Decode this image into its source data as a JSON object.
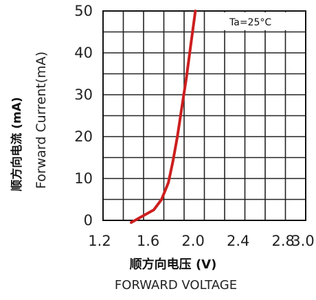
{
  "chart_data": {
    "type": "line",
    "title": "",
    "xlabel_cn": "顺方向电压 (V)",
    "xlabel": "FORWARD VOLTAGE",
    "ylabel_cn": "顺方向电流 (mA)",
    "ylabel": "Forward Current(mA)",
    "annotation": "Ta=25°C",
    "xlim": [
      1.2,
      3.0
    ],
    "ylim": [
      0,
      50
    ],
    "x_ticks": [
      "1.2",
      "1.6",
      "2.0",
      "2.4",
      "2.8",
      "3.0"
    ],
    "x_tick_values": [
      1.2,
      1.6,
      2.0,
      2.4,
      2.8,
      3.0
    ],
    "y_ticks": [
      "0",
      "10",
      "20",
      "30",
      "40",
      "50"
    ],
    "y_tick_values": [
      0,
      10,
      20,
      30,
      40,
      50
    ],
    "grid": true,
    "series": [
      {
        "color": "#cc1f1f",
        "x": [
          1.45,
          1.55,
          1.65,
          1.72,
          1.78,
          1.82,
          1.86,
          1.9,
          1.94,
          1.98,
          2.02
        ],
        "y": [
          -0.5,
          1.0,
          2.5,
          5.0,
          9.0,
          14.0,
          20.0,
          27.0,
          34.0,
          42.0,
          50.0
        ]
      }
    ]
  }
}
